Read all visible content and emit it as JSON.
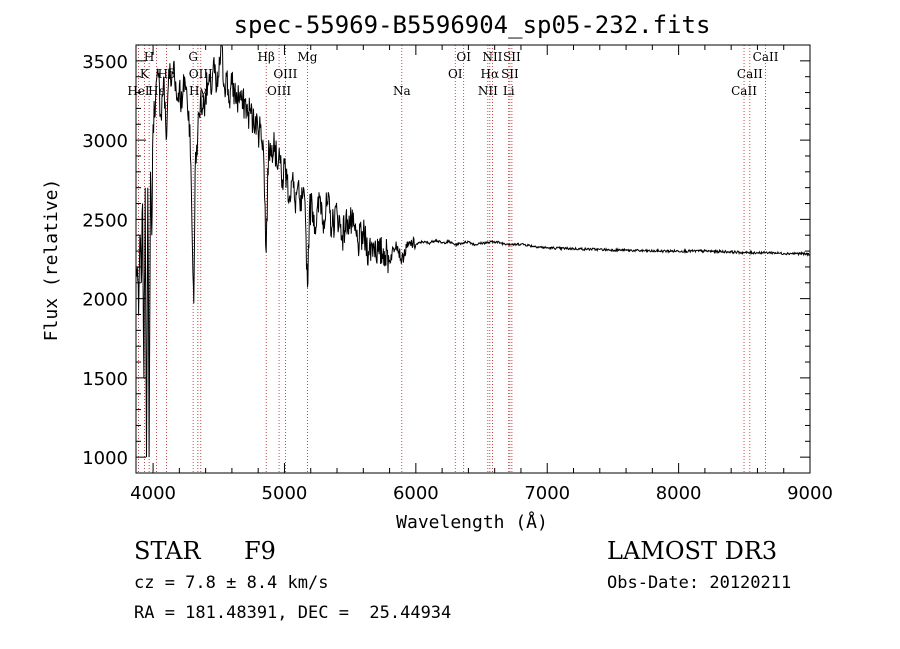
{
  "chart_data": {
    "type": "line",
    "title": "spec-55969-B5596904_sp05-232.fits",
    "xlabel": "Wavelength (Å)",
    "ylabel": "Flux (relative)",
    "xlim": [
      3870,
      9000
    ],
    "ylim": [
      900,
      3600
    ],
    "xticks": [
      4000,
      5000,
      6000,
      7000,
      8000,
      9000
    ],
    "yticks": [
      1000,
      1500,
      2000,
      2500,
      3000,
      3500
    ],
    "grid": false,
    "series": [
      {
        "name": "flux",
        "x": [
          3870,
          3880,
          3890,
          3900,
          3910,
          3920,
          3930,
          3940,
          3950,
          3960,
          3970,
          3980,
          3990,
          4000,
          4020,
          4040,
          4060,
          4080,
          4100,
          4120,
          4140,
          4160,
          4180,
          4200,
          4220,
          4240,
          4260,
          4280,
          4300,
          4310,
          4320,
          4340,
          4360,
          4380,
          4400,
          4420,
          4440,
          4460,
          4480,
          4500,
          4520,
          4540,
          4560,
          4580,
          4600,
          4620,
          4640,
          4660,
          4680,
          4700,
          4720,
          4740,
          4760,
          4780,
          4800,
          4820,
          4840,
          4861,
          4880,
          4900,
          4920,
          4940,
          4960,
          4980,
          5000,
          5020,
          5040,
          5060,
          5080,
          5100,
          5120,
          5140,
          5160,
          5175,
          5190,
          5210,
          5240,
          5270,
          5300,
          5330,
          5360,
          5400,
          5440,
          5480,
          5520,
          5560,
          5600,
          5640,
          5680,
          5720,
          5760,
          5800,
          5850,
          5893,
          5930,
          5970,
          6000,
          6050,
          6100,
          6150,
          6200,
          6250,
          6300,
          6350,
          6400,
          6450,
          6500,
          6563,
          6600,
          6650,
          6700,
          6750,
          6800,
          6900,
          7000,
          7200,
          7400,
          7600,
          7800,
          8000,
          8200,
          8400,
          8500,
          8542,
          8600,
          8662,
          8700,
          8800,
          8900,
          9000
        ],
        "values": [
          2150,
          2200,
          1900,
          2400,
          2100,
          2600,
          1500,
          2700,
          1000,
          2700,
          1000,
          2800,
          2400,
          3100,
          3300,
          3400,
          3150,
          3400,
          3000,
          3450,
          3350,
          3500,
          3250,
          3350,
          3200,
          3400,
          3250,
          3100,
          2300,
          1970,
          2800,
          3050,
          3250,
          3200,
          3300,
          3350,
          3300,
          3500,
          3300,
          3400,
          3600,
          3350,
          3400,
          3250,
          3350,
          3300,
          3250,
          3300,
          3200,
          3250,
          3150,
          3200,
          3100,
          3150,
          3050,
          3100,
          2950,
          2290,
          3000,
          2900,
          3050,
          2850,
          2950,
          2700,
          2850,
          2750,
          2650,
          2750,
          2600,
          2700,
          2550,
          2650,
          2500,
          2070,
          2550,
          2600,
          2450,
          2650,
          2500,
          2600,
          2450,
          2550,
          2400,
          2500,
          2450,
          2350,
          2400,
          2300,
          2350,
          2280,
          2300,
          2240,
          2360,
          2240,
          2320,
          2350,
          2340,
          2360,
          2350,
          2370,
          2350,
          2360,
          2340,
          2350,
          2360,
          2340,
          2350,
          2355,
          2360,
          2350,
          2345,
          2340,
          2345,
          2330,
          2320,
          2315,
          2310,
          2305,
          2300,
          2300,
          2300,
          2295,
          2290,
          2290,
          2290,
          2290,
          2290,
          2285,
          2285,
          2280
        ]
      }
    ],
    "lines": [
      {
        "label": "H",
        "x": 3970,
        "row": 0
      },
      {
        "label": "K",
        "x": 3934,
        "row": 1
      },
      {
        "label": "HeI",
        "x": 3889,
        "row": 2
      },
      {
        "label": "Hδ",
        "x": 4102,
        "row": 1
      },
      {
        "label": "Hε",
        "x": 4026,
        "row": 2
      },
      {
        "label": "G",
        "x": 4305,
        "row": 0
      },
      {
        "label": "OIII",
        "x": 4363,
        "row": 1
      },
      {
        "label": "Hγ",
        "x": 4341,
        "row": 2
      },
      {
        "label": "Hβ",
        "x": 4861,
        "row": 0
      },
      {
        "label": "OIII",
        "x": 5007,
        "row": 1
      },
      {
        "label": "OIII",
        "x": 4959,
        "row": 2
      },
      {
        "label": "Mg",
        "x": 5175,
        "row": 0
      },
      {
        "label": "Na",
        "x": 5893,
        "row": 2
      },
      {
        "label": "OI",
        "x": 6364,
        "row": 0
      },
      {
        "label": "OI",
        "x": 6300,
        "row": 1
      },
      {
        "label": "NII",
        "x": 6583,
        "row": 0
      },
      {
        "label": "Hα",
        "x": 6563,
        "row": 1
      },
      {
        "label": "NII",
        "x": 6548,
        "row": 2
      },
      {
        "label": "SII",
        "x": 6731,
        "row": 0
      },
      {
        "label": "SII",
        "x": 6716,
        "row": 1
      },
      {
        "label": "Li",
        "x": 6707,
        "row": 2
      },
      {
        "label": "CaII",
        "x": 8662,
        "row": 0
      },
      {
        "label": "CaII",
        "x": 8542,
        "row": 1
      },
      {
        "label": "CaII",
        "x": 8498,
        "row": 2
      }
    ]
  },
  "info": {
    "object_class": "STAR",
    "subclass": "F9",
    "survey": "LAMOST DR3",
    "redshift": "cz = 7.8 ± 8.4 km/s",
    "obs_date": "Obs-Date: 20120211",
    "coordinates": "RA = 181.48391, DEC =  25.44934"
  }
}
